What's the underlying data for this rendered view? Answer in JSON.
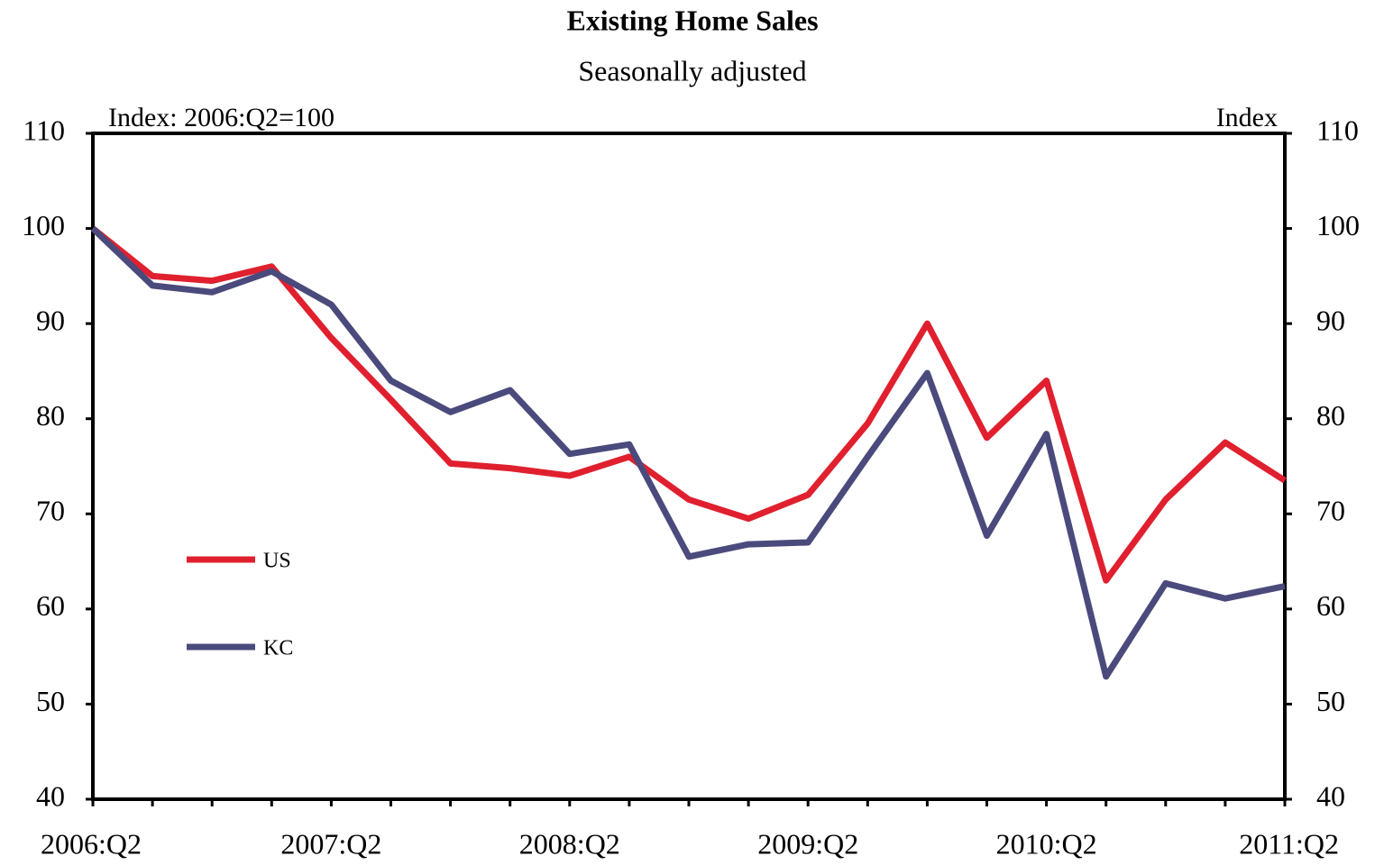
{
  "chart_data": {
    "type": "line",
    "title": "Existing Home Sales",
    "subtitle": "Seasonally adjusted",
    "y_axis_label": "Index: 2006:Q2=100",
    "y2_axis_label": "Index",
    "categories": [
      "2006:Q2",
      null,
      null,
      null,
      "2007:Q2",
      null,
      null,
      null,
      "2008:Q2",
      null,
      null,
      null,
      "2009:Q2",
      null,
      null,
      null,
      "2010:Q2",
      null,
      null,
      null,
      "2011:Q2"
    ],
    "series": [
      {
        "name": "US",
        "color": "#e0202e",
        "values": [
          100,
          95,
          94.5,
          96,
          88.5,
          82,
          75.3,
          74.8,
          74,
          76,
          71.5,
          69.5,
          72,
          79.5,
          90,
          78,
          84,
          63,
          71.5,
          77.5,
          73.5
        ]
      },
      {
        "name": "KC",
        "color": "#4b4a7c",
        "values": [
          100,
          94,
          93.3,
          95.5,
          92,
          84,
          80.7,
          83,
          76.3,
          77.3,
          65.5,
          66.8,
          67,
          76,
          84.8,
          67.7,
          78.4,
          52.9,
          62.7,
          61.1,
          62.4
        ]
      }
    ],
    "ylim": [
      40,
      110
    ],
    "yticks": [
      40,
      50,
      60,
      70,
      80,
      90,
      100,
      110
    ],
    "y2lim": [
      40,
      110
    ],
    "y2ticks": [
      40,
      50,
      60,
      70,
      80,
      90,
      100,
      110
    ],
    "legend": "left"
  }
}
